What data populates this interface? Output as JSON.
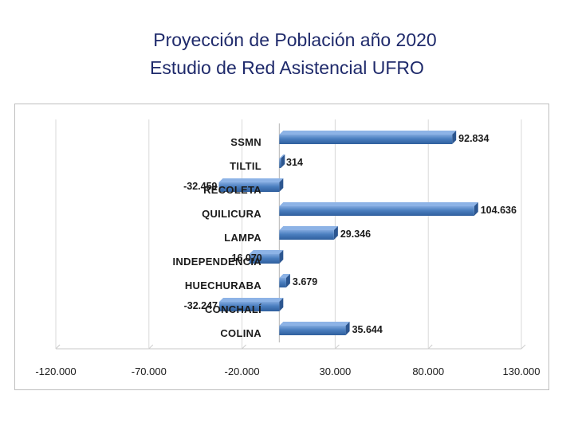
{
  "header": {
    "title_line1": "Proyección de Población año 2020",
    "title_line2": "Estudio de Red Asistencial UFRO"
  },
  "chart_data": {
    "type": "bar",
    "orientation": "horizontal",
    "categories": [
      "SSMN",
      "TILTIL",
      "RECOLETA",
      "QUILICURA",
      "LAMPA",
      "INDEPENDENCIA",
      "HUECHURABA",
      "CONCHALÍ",
      "COLINA"
    ],
    "values": [
      92834,
      314,
      -32459,
      104636,
      29346,
      -16070,
      3679,
      -32247,
      35644
    ],
    "value_labels": [
      "92.834",
      "314",
      "-32.459",
      "104.636",
      "29.346",
      "-16.070",
      "3.679",
      "-32.247",
      "35.644"
    ],
    "xlim": [
      -120000,
      130000
    ],
    "xticks": [
      -120000,
      -70000,
      -20000,
      30000,
      80000,
      130000
    ],
    "xtick_labels": [
      "-120.000",
      "-70.000",
      "-20.000",
      "30.000",
      "80.000",
      "130.000"
    ],
    "grid": true,
    "bar_color": "#4a7ebf",
    "title": "",
    "xlabel": "",
    "ylabel": ""
  }
}
